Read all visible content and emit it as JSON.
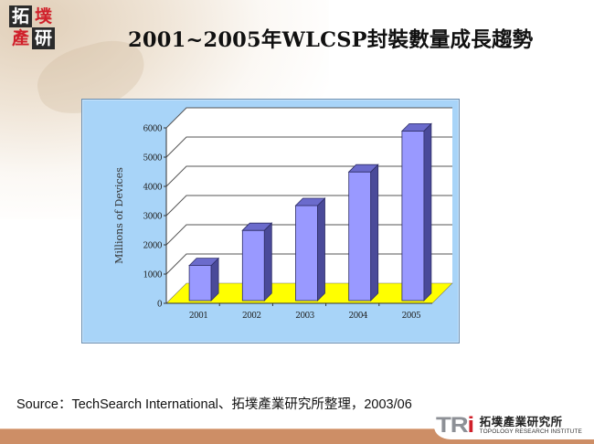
{
  "slide": {
    "title": "2001~2005年WLCSP封裝數量成長趨勢",
    "corner_logo": {
      "chars": [
        "拓",
        "墣",
        "產",
        "研"
      ]
    },
    "source": "Source：TechSearch International、拓墣產業研究所整理，2003/06",
    "footer_logo": {
      "mark": "TR",
      "mark_i": "i",
      "name_cn": "拓墣產業研究所",
      "name_en": "TOPOLOGY RESEARCH INSTITUTE"
    }
  },
  "colors": {
    "chart_background": "#a8d4f8",
    "plot_wall": "#ffffff",
    "floor": "#ffff00",
    "bar_front": "#9999ff",
    "bar_side": "#4a4a99",
    "bar_top": "#6b6bcc",
    "gridline": "#555555",
    "band": "#cd8e66"
  },
  "chart_data": {
    "type": "bar",
    "style": "3d-column",
    "title": "",
    "xlabel": "",
    "ylabel": "Millions of Devices",
    "categories": [
      "2001",
      "2002",
      "2003",
      "2004",
      "2005"
    ],
    "values": [
      1200,
      2400,
      3250,
      4400,
      5800
    ],
    "ylim": [
      0,
      6000
    ],
    "yticks": [
      "0",
      "1000",
      "2000",
      "3000",
      "4000",
      "5000",
      "6000"
    ],
    "grid": true,
    "legend": "none"
  }
}
